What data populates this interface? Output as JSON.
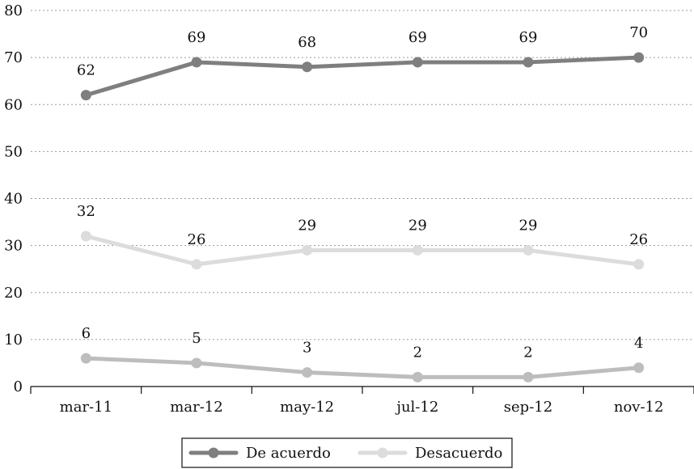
{
  "chart_data": {
    "type": "line",
    "categories": [
      "mar-11",
      "mar-12",
      "may-12",
      "jul-12",
      "sep-12",
      "nov-12"
    ],
    "ylim": [
      0,
      80
    ],
    "yticks": [
      "0",
      "10",
      "20",
      "30",
      "40",
      "50",
      "60",
      "70",
      "80"
    ],
    "grid": "horizontal dotted",
    "legend_position": "bottom",
    "series": [
      {
        "name": "De acuerdo",
        "values": [
          62,
          69,
          68,
          69,
          69,
          70
        ],
        "labels": [
          "62",
          "69",
          "68",
          "69",
          "69",
          "70"
        ],
        "color": "#7f7f7f",
        "in_legend": true
      },
      {
        "name": "Desacuerdo",
        "values": [
          32,
          26,
          29,
          29,
          29,
          26
        ],
        "labels": [
          "32",
          "26",
          "29",
          "29",
          "29",
          "26"
        ],
        "color": "#dcdcdc",
        "in_legend": true
      },
      {
        "values": [
          6,
          5,
          3,
          2,
          2,
          4
        ],
        "labels": [
          "6",
          "5",
          "3",
          "2",
          "2",
          "4"
        ],
        "color": "#bdbdbd",
        "in_legend": false
      }
    ]
  }
}
